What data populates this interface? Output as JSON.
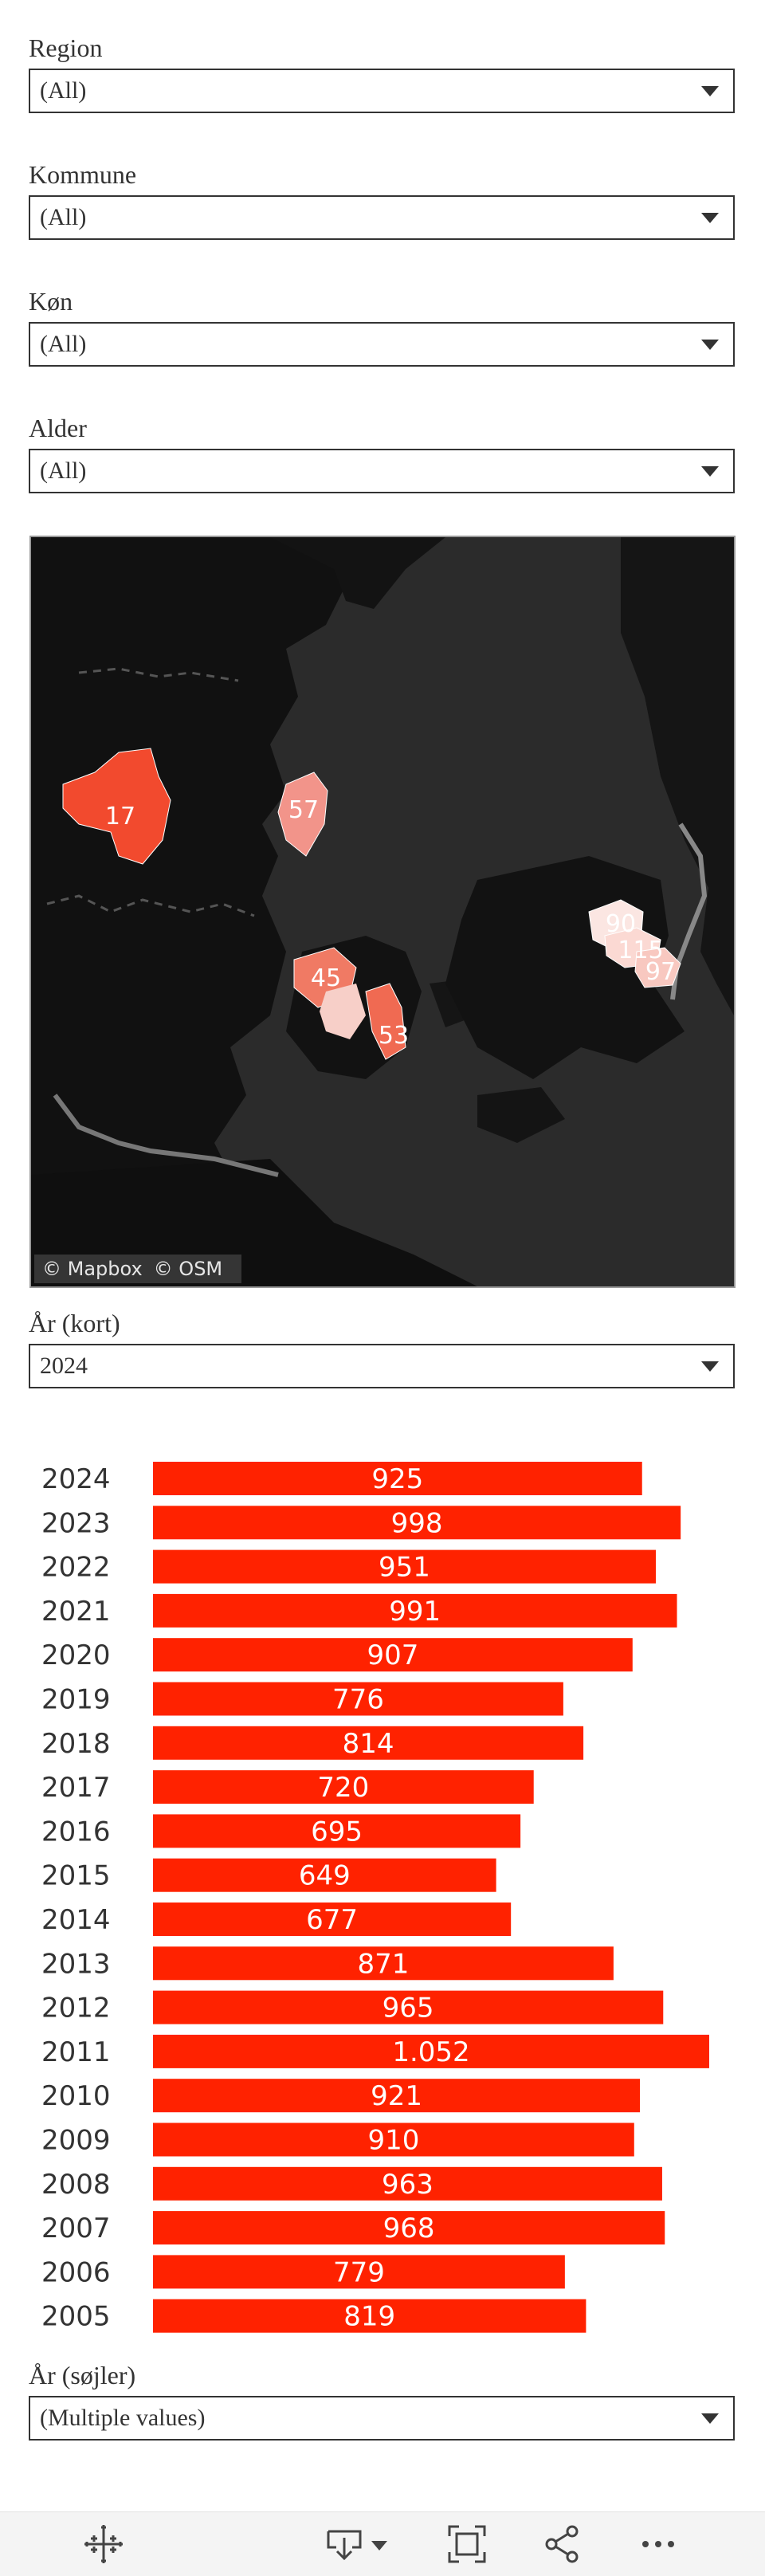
{
  "filters": [
    {
      "label": "Region",
      "value": "(All)"
    },
    {
      "label": "Kommune",
      "value": "(All)"
    },
    {
      "label": "Køn",
      "value": "(All)"
    },
    {
      "label": "Alder",
      "value": "(All)"
    }
  ],
  "map": {
    "attribution": [
      "© Mapbox",
      "© OSM"
    ],
    "markers": [
      {
        "label": "17",
        "color": "#f24a2e"
      },
      {
        "label": "57",
        "color": "#f2948a"
      },
      {
        "label": "45",
        "color": "#f07a64"
      },
      {
        "label": "53",
        "color": "#f06a52"
      },
      {
        "label": "90",
        "color": "#fbe6e2"
      },
      {
        "label": "115",
        "color": "#fbd9d3"
      },
      {
        "label": "97",
        "color": "#f8c8c0"
      }
    ]
  },
  "year_map_filter": {
    "label": "År (kort)",
    "value": "2024"
  },
  "chart_data": {
    "type": "bar",
    "orientation": "horizontal",
    "categories": [
      "2024",
      "2023",
      "2022",
      "2021",
      "2020",
      "2019",
      "2018",
      "2017",
      "2016",
      "2015",
      "2014",
      "2013",
      "2012",
      "2011",
      "2010",
      "2009",
      "2008",
      "2007",
      "2006",
      "2005"
    ],
    "values": [
      925,
      998,
      951,
      991,
      907,
      776,
      814,
      720,
      695,
      649,
      677,
      871,
      965,
      1052,
      921,
      910,
      963,
      968,
      779,
      819
    ],
    "value_labels": [
      "925",
      "998",
      "951",
      "991",
      "907",
      "776",
      "814",
      "720",
      "695",
      "649",
      "677",
      "871",
      "965",
      "1.052",
      "921",
      "910",
      "963",
      "968",
      "779",
      "819"
    ],
    "bar_color": "#ff2200",
    "xlim": [
      0,
      1052
    ],
    "grid": false,
    "title": "",
    "xlabel": "",
    "ylabel": ""
  },
  "year_bar_filter": {
    "label": "År (søjler)",
    "value": "(Multiple values)"
  },
  "toolbar": {
    "icons": [
      "tableau-logo-icon",
      "download-icon",
      "chevron-down-icon",
      "fullscreen-icon",
      "share-icon",
      "more-icon"
    ]
  }
}
